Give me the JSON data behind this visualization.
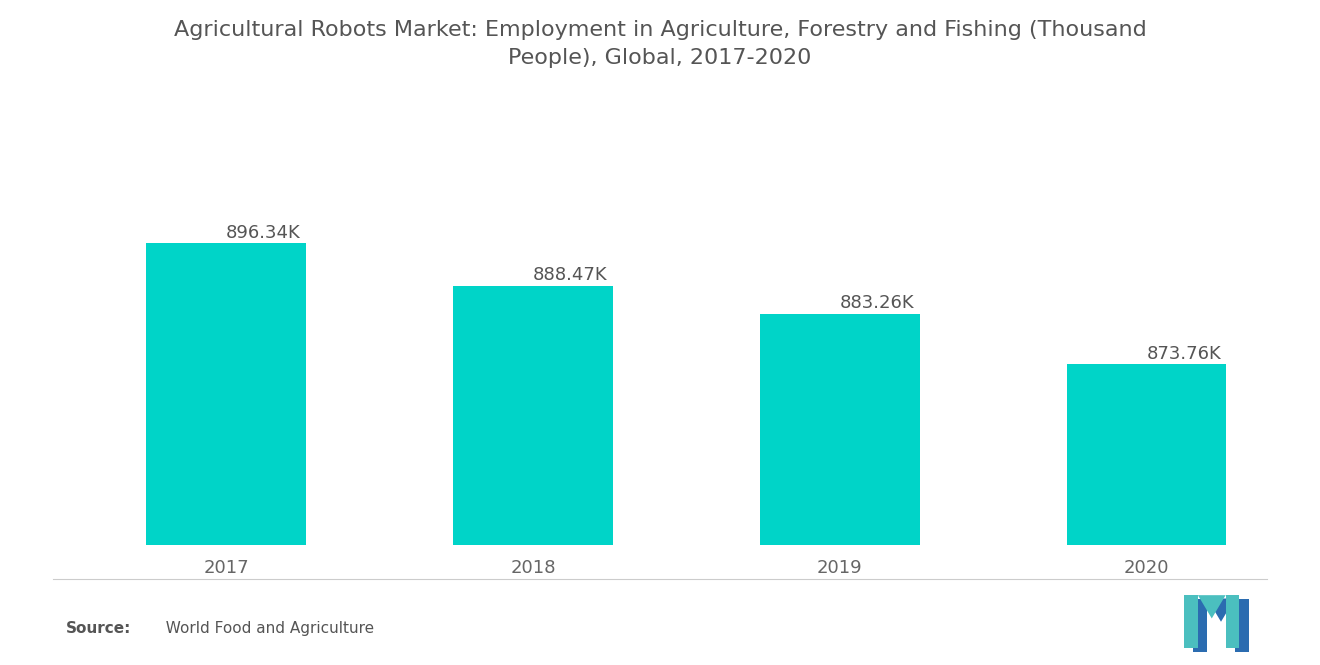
{
  "title": "Agricultural Robots Market: Employment in Agriculture, Forestry and Fishing (Thousand\nPeople), Global, 2017-2020",
  "categories": [
    "2017",
    "2018",
    "2019",
    "2020"
  ],
  "values": [
    896.34,
    888.47,
    883.26,
    873.76
  ],
  "labels": [
    "896.34K",
    "888.47K",
    "883.26K",
    "873.76K"
  ],
  "bar_color": "#00D4C8",
  "background_color": "#ffffff",
  "title_color": "#555555",
  "label_color": "#555555",
  "tick_color": "#666666",
  "ylim_min": 840,
  "ylim_max": 912,
  "title_fontsize": 16,
  "label_fontsize": 13,
  "tick_fontsize": 13,
  "source_fontsize": 11,
  "bar_width": 0.52
}
